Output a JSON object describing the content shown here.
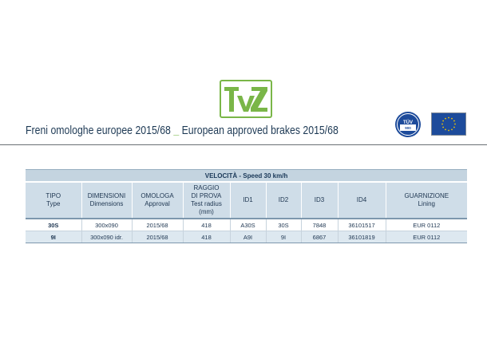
{
  "logo": {
    "icon": "tvz-logo",
    "text": "TVZ",
    "color": "#7ab648"
  },
  "title": {
    "italian": "Freni omologhe europee 2015/68",
    "separator": "_",
    "english": "European approved brakes 2015/68"
  },
  "badges": {
    "tuv": {
      "icon": "tuv-certification-icon",
      "top_text": "TÜV",
      "bottom_text": "900"
    },
    "eu": {
      "icon": "eu-flag-icon",
      "colors": {
        "blue": "#1d4b9b",
        "star": "#f2c500"
      }
    }
  },
  "table": {
    "speed_caption": "VELOCITÀ - Speed 30 km/h",
    "columns": [
      {
        "line1": "TIPO",
        "line2": "Type"
      },
      {
        "line1": "DIMENSIONI",
        "line2": "Dimensions"
      },
      {
        "line1": "OMOLOGA",
        "line2": "Approval"
      },
      {
        "line1": "RAGGIO",
        "line2": "DI PROVA",
        "line3": "Test radius",
        "line4": "(mm)"
      },
      {
        "line1": "ID1"
      },
      {
        "line1": "ID2"
      },
      {
        "line1": "ID3"
      },
      {
        "line1": "ID4"
      },
      {
        "line1": "GUARNIZIONE",
        "line2": "Lining"
      }
    ],
    "rows": [
      [
        "30S",
        "300x090",
        "2015/68",
        "418",
        "A30S",
        "30S",
        "7848",
        "36101517",
        "EUR 0112"
      ],
      [
        "9I",
        "300x090 idr.",
        "2015/68",
        "418",
        "A9I",
        "9I",
        "6867",
        "36101819",
        "EUR 0112"
      ]
    ]
  }
}
